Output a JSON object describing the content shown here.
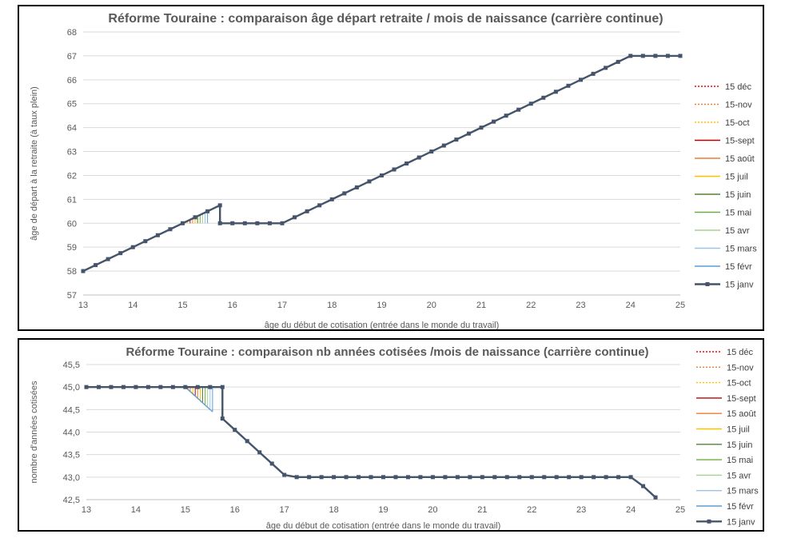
{
  "chart_data": [
    {
      "type": "line",
      "title": "Réforme Touraine : comparaison âge départ retraite / mois de naissance (carrière continue)",
      "xlabel": "âge du début de cotisation (entrée dans le monde du travail)",
      "ylabel": "âge de départ à la retraite (à taux plein)",
      "xlim": [
        13,
        25
      ],
      "ylim": [
        57,
        68
      ],
      "xticks": [
        "13",
        "14",
        "15",
        "16",
        "17",
        "18",
        "19",
        "20",
        "21",
        "22",
        "23",
        "24",
        "25"
      ],
      "yticks": [
        "57",
        "58",
        "59",
        "60",
        "61",
        "62",
        "63",
        "64",
        "65",
        "66",
        "67",
        "68"
      ],
      "grid": true,
      "legend_position": "right",
      "main_series": {
        "name": "15 janv",
        "color": "#44546A",
        "x": [
          13,
          13.25,
          13.5,
          13.75,
          14,
          14.25,
          14.5,
          14.75,
          15,
          15.25,
          15.5,
          15.75,
          15.75,
          16,
          16.25,
          16.5,
          16.75,
          17,
          17.25,
          17.5,
          17.75,
          18,
          18.25,
          18.5,
          18.75,
          19,
          19.25,
          19.5,
          19.75,
          20,
          20.25,
          20.5,
          20.75,
          21,
          21.25,
          21.5,
          21.75,
          22,
          22.25,
          22.5,
          22.75,
          23,
          23.25,
          23.5,
          23.75,
          24,
          24.25,
          24.5,
          24.75,
          25
        ],
        "y": [
          58,
          58.25,
          58.5,
          58.75,
          59,
          59.25,
          59.5,
          59.75,
          60,
          60.25,
          60.5,
          60.75,
          60,
          60,
          60,
          60,
          60,
          60,
          60.25,
          60.5,
          60.75,
          61,
          61.25,
          61.5,
          61.75,
          62,
          62.25,
          62.5,
          62.75,
          63,
          63.25,
          63.5,
          63.75,
          64,
          64.25,
          64.5,
          64.75,
          65,
          65.25,
          65.5,
          65.75,
          66,
          66.25,
          66.5,
          66.75,
          67,
          67,
          67,
          67,
          67
        ]
      },
      "series": [
        {
          "name": "15 déc",
          "color": "#FF0000",
          "dash": true,
          "x": [
            15,
            15.02
          ],
          "y": [
            60,
            60.02
          ]
        },
        {
          "name": "15-nov",
          "color": "#ED7D31",
          "dash": true,
          "x": [
            15,
            15.06
          ],
          "y": [
            60,
            60.06
          ]
        },
        {
          "name": "15-oct",
          "color": "#FFC000",
          "dash": true,
          "x": [
            15,
            15.1
          ],
          "y": [
            60,
            60.1
          ]
        },
        {
          "name": "15-sept",
          "color": "#C00000",
          "dash": false,
          "x": [
            15,
            15.15
          ],
          "y": [
            60,
            60.15
          ]
        },
        {
          "name": "15 août",
          "color": "#ED7D31",
          "dash": false,
          "x": [
            15,
            15.2
          ],
          "y": [
            60,
            60.2
          ]
        },
        {
          "name": "15 juil",
          "color": "#FFC000",
          "dash": false,
          "x": [
            15,
            15.25
          ],
          "y": [
            60,
            60.25
          ]
        },
        {
          "name": "15 juin",
          "color": "#548235",
          "dash": false,
          "x": [
            15,
            15.3
          ],
          "y": [
            60,
            60.3
          ]
        },
        {
          "name": "15 mai",
          "color": "#70AD47",
          "dash": false,
          "x": [
            15,
            15.35
          ],
          "y": [
            60,
            60.35
          ]
        },
        {
          "name": "15 avr",
          "color": "#A9D18E",
          "dash": false,
          "x": [
            15,
            15.4
          ],
          "y": [
            60,
            60.4
          ]
        },
        {
          "name": "15 mars",
          "color": "#9DC3E6",
          "dash": false,
          "x": [
            15,
            15.45
          ],
          "y": [
            60,
            60.45
          ]
        },
        {
          "name": "15 févr",
          "color": "#5B9BD5",
          "dash": false,
          "x": [
            15,
            15.5
          ],
          "y": [
            60,
            60.5
          ]
        }
      ]
    },
    {
      "type": "line",
      "title": "Réforme Touraine : comparaison nb années cotisées /mois de naissance (carrière continue)",
      "xlabel": "âge du début de cotisation (entrée dans le monde du travail)",
      "ylabel": "nombre d'années cotisées",
      "xlim": [
        13,
        25
      ],
      "ylim": [
        42.5,
        45.5
      ],
      "xticks": [
        "13",
        "14",
        "15",
        "16",
        "17",
        "18",
        "19",
        "20",
        "21",
        "22",
        "23",
        "24",
        "25"
      ],
      "yticks": [
        "42,5",
        "43,0",
        "43,5",
        "44,0",
        "44,5",
        "45,0",
        "45,5"
      ],
      "grid": true,
      "legend_position": "right",
      "main_series": {
        "name": "15 janv",
        "color": "#44546A",
        "x": [
          13,
          13.25,
          13.5,
          13.75,
          14,
          14.25,
          14.5,
          14.75,
          15,
          15.25,
          15.5,
          15.75,
          15.75,
          16,
          16.25,
          16.5,
          16.75,
          17,
          17.25,
          17.5,
          17.75,
          18,
          18.25,
          18.5,
          18.75,
          19,
          19.25,
          19.5,
          19.75,
          20,
          20.25,
          20.5,
          20.75,
          21,
          21.25,
          21.5,
          21.75,
          22,
          22.25,
          22.5,
          22.75,
          23,
          23.25,
          23.5,
          23.75,
          24,
          24.25,
          24.5
        ],
        "y": [
          45,
          45,
          45,
          45,
          45,
          45,
          45,
          45,
          45,
          45,
          45,
          45,
          44.3,
          44.05,
          43.8,
          43.55,
          43.3,
          43.05,
          43,
          43,
          43,
          43,
          43,
          43,
          43,
          43,
          43,
          43,
          43,
          43,
          43,
          43,
          43,
          43,
          43,
          43,
          43,
          43,
          43,
          43,
          43,
          43,
          43,
          43,
          43,
          43,
          42.8,
          42.55
        ]
      },
      "series": [
        {
          "name": "15 déc",
          "color": "#FF0000",
          "dash": true,
          "x": [
            15,
            15.05
          ],
          "y": [
            45,
            44.95
          ]
        },
        {
          "name": "15-nov",
          "color": "#ED7D31",
          "dash": true,
          "x": [
            15,
            15.1
          ],
          "y": [
            45,
            44.9
          ]
        },
        {
          "name": "15-oct",
          "color": "#FFC000",
          "dash": true,
          "x": [
            15,
            15.15
          ],
          "y": [
            45,
            44.85
          ]
        },
        {
          "name": "15-sept",
          "color": "#C00000",
          "dash": false,
          "x": [
            15,
            15.2
          ],
          "y": [
            45,
            44.8
          ]
        },
        {
          "name": "15 août",
          "color": "#ED7D31",
          "dash": false,
          "x": [
            15,
            15.25
          ],
          "y": [
            45,
            44.75
          ]
        },
        {
          "name": "15 juil",
          "color": "#FFC000",
          "dash": false,
          "x": [
            15,
            15.3
          ],
          "y": [
            45,
            44.7
          ]
        },
        {
          "name": "15 juin",
          "color": "#548235",
          "dash": false,
          "x": [
            15,
            15.35
          ],
          "y": [
            45,
            44.65
          ]
        },
        {
          "name": "15 mai",
          "color": "#70AD47",
          "dash": false,
          "x": [
            15,
            15.4
          ],
          "y": [
            45,
            44.6
          ]
        },
        {
          "name": "15 avr",
          "color": "#A9D18E",
          "dash": false,
          "x": [
            15,
            15.45
          ],
          "y": [
            45,
            44.55
          ]
        },
        {
          "name": "15 mars",
          "color": "#9DC3E6",
          "dash": false,
          "x": [
            15,
            15.5
          ],
          "y": [
            45,
            44.5
          ]
        },
        {
          "name": "15 févr",
          "color": "#5B9BD5",
          "dash": false,
          "x": [
            15,
            15.55
          ],
          "y": [
            45,
            44.45
          ]
        }
      ]
    }
  ]
}
